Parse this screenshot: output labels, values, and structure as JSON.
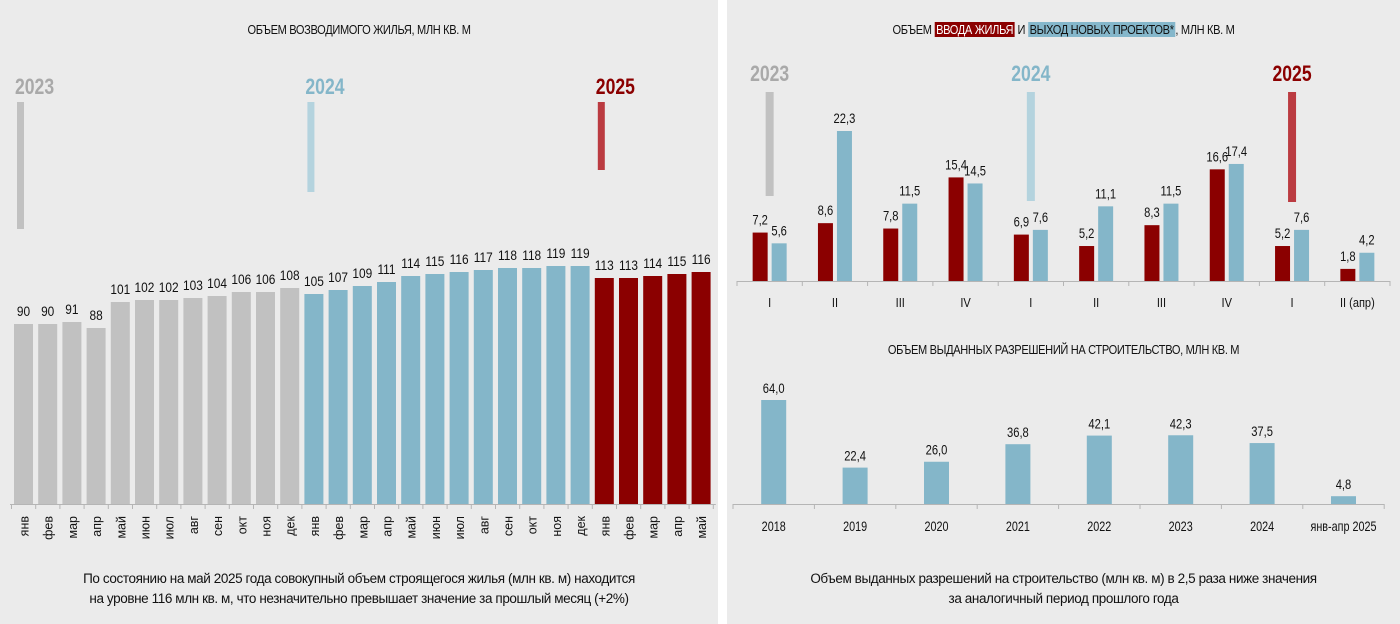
{
  "colors": {
    "y2023": "#c1c1c1",
    "y2023_label": "#a9a9a9",
    "y2024": "#84b6c9",
    "y2024_marker": "#b4d3de",
    "y2025": "#8b0000",
    "y2025_marker": "#bb3b41",
    "permits": "#84b6c9",
    "text": "#111111",
    "axis": "#b5b5b5",
    "panel_bg": "#ebebeb"
  },
  "chart_data": [
    {
      "id": "under-construction",
      "type": "bar",
      "title": "ОБЪЕМ ВОЗВОДИМОГО ЖИЛЬЯ, МЛН КВ. М",
      "xlabel": "",
      "ylabel": "",
      "year_labels": [
        "2023",
        "2024",
        "2025"
      ],
      "categories": [
        "янв",
        "фев",
        "мар",
        "апр",
        "май",
        "июн",
        "июл",
        "авг",
        "сен",
        "окт",
        "ноя",
        "дек",
        "янв",
        "фев",
        "мар",
        "апр",
        "май",
        "июн",
        "июл",
        "авг",
        "сен",
        "окт",
        "ноя",
        "дек",
        "янв",
        "фев",
        "мар",
        "апр",
        "май"
      ],
      "years": [
        "2023",
        "2023",
        "2023",
        "2023",
        "2023",
        "2023",
        "2023",
        "2023",
        "2023",
        "2023",
        "2023",
        "2023",
        "2024",
        "2024",
        "2024",
        "2024",
        "2024",
        "2024",
        "2024",
        "2024",
        "2024",
        "2024",
        "2024",
        "2024",
        "2025",
        "2025",
        "2025",
        "2025",
        "2025"
      ],
      "values": [
        90,
        90,
        91,
        88,
        101,
        102,
        102,
        103,
        104,
        106,
        106,
        108,
        105,
        107,
        109,
        111,
        114,
        115,
        116,
        117,
        118,
        118,
        119,
        119,
        113,
        113,
        114,
        115,
        116
      ],
      "grid": false,
      "caption_lines": [
        "По состоянию на май 2025 года совокупный объем строящегося жилья (млн кв. м) находится",
        "на уровне 116 млн кв. м, что незначительно превышает значение за прошлый месяц (+2%)"
      ]
    },
    {
      "id": "commissioning-vs-new-projects",
      "type": "bar",
      "title_parts": [
        "ОБЪЕМ ",
        "ВВОДА ЖИЛЬЯ",
        " И ",
        "ВЫХОД НОВЫХ ПРОЕКТОВ*",
        ", МЛН КВ. М"
      ],
      "year_labels": [
        "2023",
        "2024",
        "2025"
      ],
      "categories": [
        "I",
        "II",
        "III",
        "IV",
        "I",
        "II",
        "III",
        "IV",
        "I",
        "II (апр)"
      ],
      "series": [
        {
          "name": "ВВОДА ЖИЛЬЯ",
          "values": [
            7.2,
            8.6,
            7.8,
            15.4,
            6.9,
            5.2,
            8.3,
            16.6,
            5.2,
            1.8
          ],
          "labels": [
            "7,2",
            "8,6",
            "7,8",
            "15,4",
            "6,9",
            "5,2",
            "8,3",
            "16,6",
            "5,2",
            "1,8"
          ]
        },
        {
          "name": "ВЫХОД НОВЫХ ПРОЕКТОВ*",
          "values": [
            5.6,
            22.3,
            11.5,
            14.5,
            7.6,
            11.1,
            11.5,
            17.4,
            7.6,
            4.2
          ],
          "labels": [
            "5,6",
            "22,3",
            "11,5",
            "14,5",
            "7,6",
            "11,1",
            "11,5",
            "17,4",
            "7,6",
            "4,2"
          ]
        }
      ],
      "grid": false
    },
    {
      "id": "building-permits",
      "type": "bar",
      "title": "ОБЪЕМ ВЫДАННЫХ РАЗРЕШЕНИЙ НА СТРОИТЕЛЬСТВО, МЛН КВ. М",
      "categories": [
        "2018",
        "2019",
        "2020",
        "2021",
        "2022",
        "2023",
        "2024",
        "янв-апр 2025"
      ],
      "values": [
        64.0,
        22.4,
        26.0,
        36.8,
        42.1,
        42.3,
        37.5,
        4.8
      ],
      "labels": [
        "64,0",
        "22,4",
        "26,0",
        "36,8",
        "42,1",
        "42,3",
        "37,5",
        "4,8"
      ],
      "grid": false,
      "caption_lines": [
        "Объем выданных разрешений на строительство (млн кв. м) в 2,5 раза ниже значения",
        "за аналогичный период прошлого года"
      ]
    }
  ]
}
